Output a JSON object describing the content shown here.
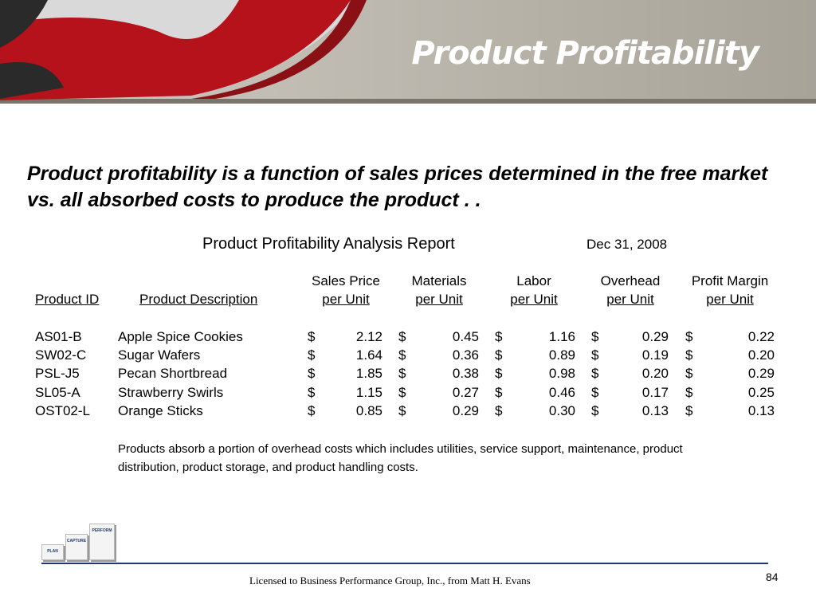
{
  "header": {
    "title": "Product Profitability"
  },
  "intro": "Product profitability is a function of sales prices determined in the free market vs. all absorbed costs to produce the product . .",
  "report": {
    "title": "Product Profitability Analysis Report",
    "date": "Dec 31, 2008"
  },
  "table": {
    "currency": "$",
    "columns": [
      [
        "Product ID"
      ],
      [
        "Product Description"
      ],
      [
        "Sales Price",
        "per Unit"
      ],
      [
        "Materials",
        "per Unit"
      ],
      [
        "Labor",
        "per Unit"
      ],
      [
        "Overhead",
        "per Unit"
      ],
      [
        "Profit Margin",
        "per Unit"
      ]
    ],
    "rows": [
      [
        "AS01-B",
        "Apple Spice Cookies",
        "2.12",
        "0.45",
        "1.16",
        "0.29",
        "0.22"
      ],
      [
        "SW02-C",
        "Sugar Wafers",
        "1.64",
        "0.36",
        "0.89",
        "0.19",
        "0.20"
      ],
      [
        "PSL-J5",
        "Pecan Shortbread",
        "1.85",
        "0.38",
        "0.98",
        "0.20",
        "0.29"
      ],
      [
        "SL05-A",
        "Strawberry Swirls",
        "1.15",
        "0.27",
        "0.46",
        "0.17",
        "0.25"
      ],
      [
        "OST02-L",
        "Orange Sticks",
        "0.85",
        "0.29",
        "0.30",
        "0.13",
        "0.13"
      ]
    ]
  },
  "note": "Products absorb a portion of overhead costs which includes utilities, service support, maintenance, product distribution, product storage, and product handling costs.",
  "logo": [
    "PLAN",
    "CAPTURE",
    "PERFORM"
  ],
  "footer": {
    "license": "Licensed to Business Performance Group, Inc., from Matt H. Evans",
    "page": "84"
  }
}
